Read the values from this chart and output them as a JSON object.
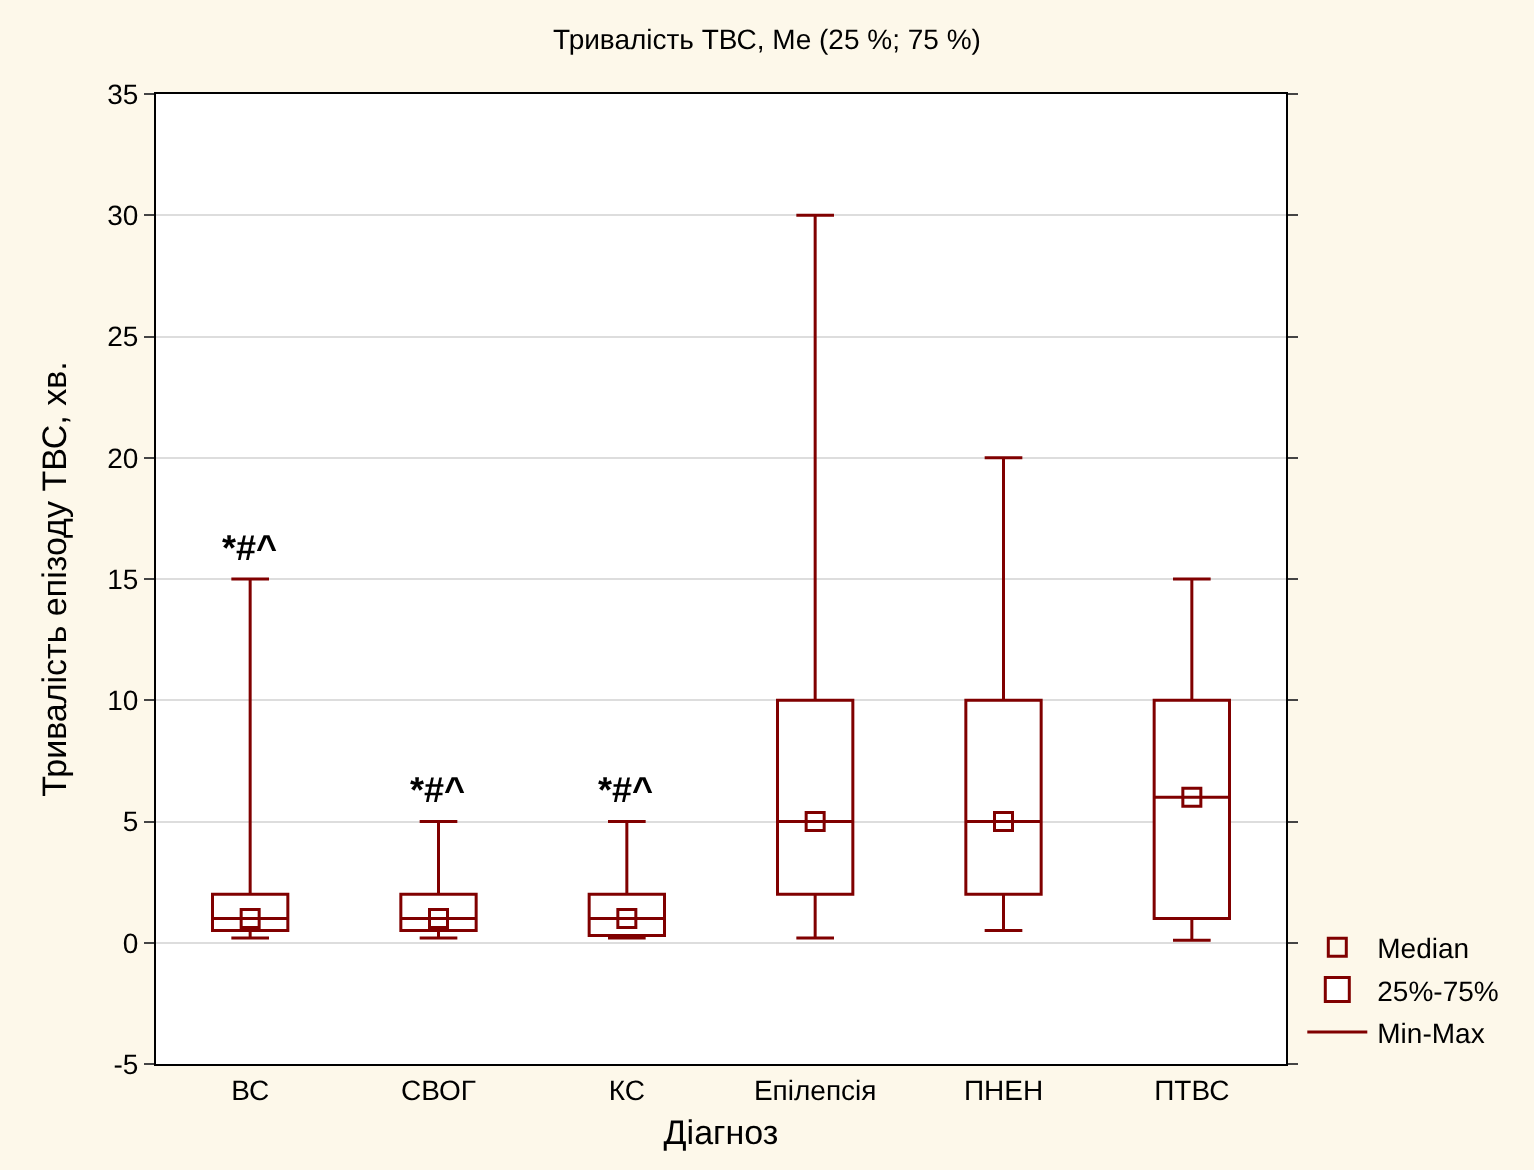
{
  "chart_data": {
    "type": "box",
    "title": "Тривалість ТВС, Me (25 %; 75 %)",
    "xlabel": "Діагноз",
    "ylabel": "Тривалість епізоду ТВС, хв.",
    "categories": [
      "ВС",
      "СВОГ",
      "КС",
      "Епілепсія",
      "ПНЕН",
      "ПТВС"
    ],
    "series": [
      {
        "name": "25%-75%",
        "color": "#800000",
        "boxes": [
          {
            "low": 0.2,
            "q1": 0.5,
            "median": 1,
            "q3": 2,
            "high": 15
          },
          {
            "low": 0.2,
            "q1": 0.5,
            "median": 1,
            "q3": 2,
            "high": 5
          },
          {
            "low": 0.2,
            "q1": 0.3,
            "median": 1,
            "q3": 2,
            "high": 5
          },
          {
            "low": 0.2,
            "q1": 2,
            "median": 5,
            "q3": 10,
            "high": 30
          },
          {
            "low": 0.5,
            "q1": 2,
            "median": 5,
            "q3": 10,
            "high": 20
          },
          {
            "low": 0.1,
            "q1": 1,
            "median": 6,
            "q3": 10,
            "high": 15
          }
        ]
      },
      {
        "name": "Median",
        "type": "scatter",
        "marker": "square",
        "color": "#800000",
        "values": [
          1,
          1,
          1,
          5,
          5,
          6
        ]
      }
    ],
    "annotations": [
      "*#^",
      "*#^",
      "*#^",
      "Min-Max"
    ],
    "ylim": [
      -5,
      35
    ],
    "yticks": [
      -5,
      0,
      5,
      10,
      15,
      20,
      25,
      30,
      35
    ],
    "grid": "y",
    "legend": "bottom right"
  }
}
